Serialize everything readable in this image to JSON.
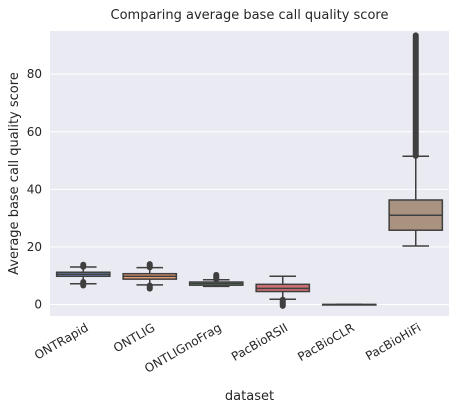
{
  "chart_data": {
    "type": "box",
    "title": "Comparing average base call quality score",
    "xlabel": "dataset",
    "ylabel": "Average base call quality score",
    "ylim": [
      -4,
      95
    ],
    "yticks": [
      0,
      20,
      40,
      60,
      80
    ],
    "grid": true,
    "categories": [
      "ONTRapid",
      "ONTLIG",
      "ONTLIGnoFrag",
      "PacBioRSII",
      "PacBioCLR",
      "PacBioHiFi"
    ],
    "boxes": [
      {
        "name": "ONTRapid",
        "whislo": 7.2,
        "q1": 9.8,
        "median": 10.5,
        "q3": 11.2,
        "whishi": 13.0,
        "fliers_low": [
          6.6,
          7.8
        ],
        "fliers_high": [
          13.1,
          13.8
        ],
        "color": "#4c72b0"
      },
      {
        "name": "ONTLIG",
        "whislo": 6.8,
        "q1": 8.8,
        "median": 9.8,
        "q3": 10.7,
        "whishi": 12.8,
        "fliers_low": [
          5.5,
          6.6
        ],
        "fliers_high": [
          12.9,
          14.0
        ],
        "color": "#dd8452"
      },
      {
        "name": "ONTLIGnoFrag",
        "whislo": 6.3,
        "q1": 6.7,
        "median": 7.3,
        "q3": 7.8,
        "whishi": 8.6,
        "fliers_low": [],
        "fliers_high": [
          8.7,
          10.3
        ],
        "color": "#55a868"
      },
      {
        "name": "PacBioRSII",
        "whislo": 1.8,
        "q1": 4.5,
        "median": 5.6,
        "q3": 7.0,
        "whishi": 9.8,
        "fliers_low": [
          -0.5,
          1.7
        ],
        "fliers_high": [],
        "color": "#c44e52"
      },
      {
        "name": "PacBioCLR",
        "whislo": 0.0,
        "q1": 0.0,
        "median": 0.0,
        "q3": 0.0,
        "whishi": 0.0,
        "fliers_low": [],
        "fliers_high": [],
        "color": "#8172b3"
      },
      {
        "name": "PacBioHiFi",
        "whislo": 20.3,
        "q1": 25.8,
        "median": 31.0,
        "q3": 36.3,
        "whishi": 51.5,
        "fliers_low": [],
        "fliers_high": [
          51.6,
          93.5
        ],
        "color": "#937860"
      }
    ]
  }
}
